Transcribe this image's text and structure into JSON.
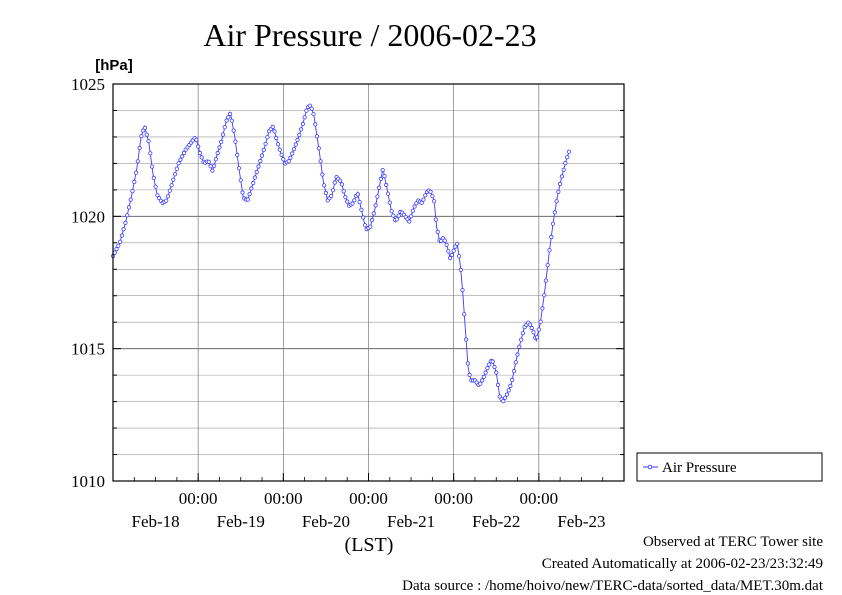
{
  "chart_data": {
    "type": "line",
    "title": "Air Pressure / 2006-02-23",
    "ylabel": "[hPa]",
    "xlabel": "(LST)",
    "ylim": [
      1010,
      1025
    ],
    "yticks": [
      1010,
      1015,
      1020,
      1025
    ],
    "ytick_labels": [
      "1010",
      "1015",
      "1020",
      "1025"
    ],
    "minor_step": 1,
    "xrange_days": [
      0,
      6
    ],
    "xticks": [
      {
        "day": 1,
        "time": "00:00",
        "date": "Feb-18"
      },
      {
        "day": 2,
        "time": "00:00",
        "date": "Feb-19"
      },
      {
        "day": 3,
        "time": "00:00",
        "date": "Feb-20"
      },
      {
        "day": 4,
        "time": "00:00",
        "date": "Feb-21"
      },
      {
        "day": 5,
        "time": "00:00",
        "date": "Feb-22"
      }
    ],
    "xlabels_extra": [
      {
        "day": 5.5,
        "time": "",
        "date": "Feb-23"
      }
    ],
    "grid": true,
    "legend": {
      "placement": "right",
      "entries": [
        "Air Pressure"
      ]
    },
    "series": [
      {
        "name": "Air Pressure",
        "color": "#3b3bff",
        "points": [
          [
            0.0,
            1018.5
          ],
          [
            0.08,
            1019.0
          ],
          [
            0.15,
            1019.8
          ],
          [
            0.22,
            1020.8
          ],
          [
            0.28,
            1021.8
          ],
          [
            0.33,
            1023.0
          ],
          [
            0.37,
            1023.4
          ],
          [
            0.42,
            1022.8
          ],
          [
            0.47,
            1021.6
          ],
          [
            0.52,
            1020.8
          ],
          [
            0.58,
            1020.5
          ],
          [
            0.63,
            1020.6
          ],
          [
            0.7,
            1021.3
          ],
          [
            0.77,
            1022.0
          ],
          [
            0.85,
            1022.5
          ],
          [
            0.92,
            1022.8
          ],
          [
            0.97,
            1023.0
          ],
          [
            1.02,
            1022.4
          ],
          [
            1.07,
            1022.0
          ],
          [
            1.12,
            1022.1
          ],
          [
            1.17,
            1021.7
          ],
          [
            1.22,
            1022.3
          ],
          [
            1.27,
            1022.8
          ],
          [
            1.33,
            1023.6
          ],
          [
            1.38,
            1023.9
          ],
          [
            1.43,
            1023.0
          ],
          [
            1.48,
            1021.8
          ],
          [
            1.53,
            1020.7
          ],
          [
            1.58,
            1020.6
          ],
          [
            1.65,
            1021.3
          ],
          [
            1.72,
            1022.0
          ],
          [
            1.78,
            1022.6
          ],
          [
            1.83,
            1023.2
          ],
          [
            1.88,
            1023.4
          ],
          [
            1.93,
            1022.8
          ],
          [
            1.97,
            1022.4
          ],
          [
            2.02,
            1022.0
          ],
          [
            2.07,
            1022.1
          ],
          [
            2.12,
            1022.5
          ],
          [
            2.18,
            1023.0
          ],
          [
            2.23,
            1023.5
          ],
          [
            2.28,
            1024.1
          ],
          [
            2.32,
            1024.2
          ],
          [
            2.36,
            1023.8
          ],
          [
            2.42,
            1022.5
          ],
          [
            2.47,
            1021.3
          ],
          [
            2.52,
            1020.6
          ],
          [
            2.57,
            1020.8
          ],
          [
            2.62,
            1021.5
          ],
          [
            2.68,
            1021.3
          ],
          [
            2.72,
            1020.8
          ],
          [
            2.77,
            1020.4
          ],
          [
            2.82,
            1020.5
          ],
          [
            2.87,
            1020.9
          ],
          [
            2.92,
            1020.2
          ],
          [
            2.97,
            1019.5
          ],
          [
            3.02,
            1019.6
          ],
          [
            3.07,
            1020.2
          ],
          [
            3.12,
            1021.0
          ],
          [
            3.17,
            1021.8
          ],
          [
            3.22,
            1021.0
          ],
          [
            3.27,
            1020.2
          ],
          [
            3.32,
            1019.8
          ],
          [
            3.38,
            1020.2
          ],
          [
            3.43,
            1020.0
          ],
          [
            3.48,
            1019.8
          ],
          [
            3.53,
            1020.3
          ],
          [
            3.58,
            1020.6
          ],
          [
            3.63,
            1020.5
          ],
          [
            3.68,
            1020.9
          ],
          [
            3.72,
            1021.0
          ],
          [
            3.77,
            1020.6
          ],
          [
            3.8,
            1019.6
          ],
          [
            3.84,
            1019.0
          ],
          [
            3.88,
            1019.2
          ],
          [
            3.92,
            1018.9
          ],
          [
            3.96,
            1018.4
          ],
          [
            4.0,
            1018.7
          ],
          [
            4.04,
            1019.0
          ],
          [
            4.08,
            1018.1
          ],
          [
            4.11,
            1017.0
          ],
          [
            4.14,
            1015.6
          ],
          [
            4.17,
            1014.3
          ],
          [
            4.2,
            1013.8
          ],
          [
            4.25,
            1013.8
          ],
          [
            4.3,
            1013.6
          ],
          [
            4.35,
            1013.9
          ],
          [
            4.4,
            1014.3
          ],
          [
            4.45,
            1014.6
          ],
          [
            4.5,
            1014.1
          ],
          [
            4.54,
            1013.2
          ],
          [
            4.58,
            1013.0
          ],
          [
            4.63,
            1013.3
          ],
          [
            4.68,
            1013.7
          ],
          [
            4.73,
            1014.5
          ],
          [
            4.78,
            1015.2
          ],
          [
            4.83,
            1015.8
          ],
          [
            4.88,
            1016.0
          ],
          [
            4.93,
            1015.7
          ],
          [
            4.97,
            1015.3
          ],
          [
            5.02,
            1016.0
          ],
          [
            5.07,
            1017.2
          ],
          [
            5.12,
            1018.6
          ],
          [
            5.17,
            1019.8
          ],
          [
            5.22,
            1020.8
          ],
          [
            5.27,
            1021.5
          ],
          [
            5.32,
            1022.1
          ],
          [
            5.36,
            1022.5
          ]
        ]
      }
    ]
  },
  "footer": {
    "line1": "Observed at TERC Tower site",
    "line2": "Created Automatically at 2006-02-23/23:32:49",
    "line3": "Data source : /home/hoivo/new/TERC-data/sorted_data/MET.30m.dat"
  }
}
